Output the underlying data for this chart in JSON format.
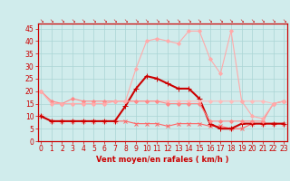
{
  "x": [
    0,
    1,
    2,
    3,
    4,
    5,
    6,
    7,
    8,
    9,
    10,
    11,
    12,
    13,
    14,
    15,
    16,
    17,
    18,
    19,
    20,
    21,
    22,
    23
  ],
  "series": [
    {
      "color": "#ff6666",
      "lw": 0.8,
      "marker": "x",
      "markersize": 3,
      "values": [
        10,
        8,
        8,
        8,
        8,
        8,
        8,
        8,
        8,
        7,
        7,
        7,
        6,
        7,
        7,
        7,
        6,
        6,
        5,
        5,
        7,
        7,
        7,
        7
      ]
    },
    {
      "color": "#cc0000",
      "lw": 1.5,
      "marker": "+",
      "markersize": 4,
      "values": [
        10,
        8,
        8,
        8,
        8,
        8,
        8,
        8,
        14,
        21,
        26,
        25,
        23,
        21,
        21,
        17,
        7,
        5,
        5,
        7,
        7,
        7,
        7,
        7
      ]
    },
    {
      "color": "#ffbbbb",
      "lw": 0.8,
      "marker": "D",
      "markersize": 2,
      "values": [
        20,
        16,
        15,
        15,
        15,
        15,
        15,
        16,
        16,
        16,
        16,
        16,
        16,
        16,
        16,
        16,
        16,
        16,
        16,
        16,
        16,
        16,
        15,
        16
      ]
    },
    {
      "color": "#ff8888",
      "lw": 0.8,
      "marker": "D",
      "markersize": 2,
      "values": [
        20,
        16,
        15,
        17,
        16,
        16,
        16,
        16,
        16,
        16,
        16,
        16,
        15,
        15,
        15,
        15,
        8,
        8,
        8,
        8,
        8,
        8,
        15,
        16
      ]
    },
    {
      "color": "#ffaaaa",
      "lw": 0.8,
      "marker": "D",
      "markersize": 2,
      "values": [
        20,
        15,
        15,
        15,
        15,
        15,
        15,
        16,
        16,
        29,
        40,
        41,
        40,
        39,
        44,
        44,
        33,
        27,
        44,
        16,
        10,
        9,
        15,
        16
      ]
    }
  ],
  "xlim": [
    -0.3,
    23.3
  ],
  "ylim": [
    0,
    47
  ],
  "yticks": [
    0,
    5,
    10,
    15,
    20,
    25,
    30,
    35,
    40,
    45
  ],
  "xticks": [
    0,
    1,
    2,
    3,
    4,
    5,
    6,
    7,
    8,
    9,
    10,
    11,
    12,
    13,
    14,
    15,
    16,
    17,
    18,
    19,
    20,
    21,
    22,
    23
  ],
  "xlabel": "Vent moyen/en rafales ( km/h )",
  "xlabel_color": "#cc0000",
  "xlabel_fontsize": 6,
  "tick_color": "#cc0000",
  "tick_fontsize": 5.5,
  "grid_color": "#aad4d4",
  "bg_color": "#d0ecec",
  "spine_color": "#cc0000"
}
